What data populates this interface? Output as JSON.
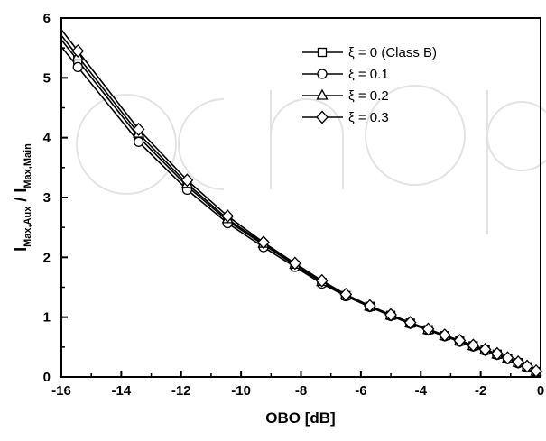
{
  "chart_data": {
    "type": "line",
    "title": "",
    "xlabel": "OBO [dB]",
    "ylabel": {
      "main": "I",
      "sub1": "Max,Aux",
      "sep": " / I",
      "sub2": "Max,Main"
    },
    "xlim": [
      -16,
      0
    ],
    "ylim": [
      0,
      6
    ],
    "xticks": [
      -16,
      -14,
      -12,
      -10,
      -8,
      -6,
      -4,
      -2,
      0
    ],
    "yticks": [
      0,
      1,
      2,
      3,
      4,
      5,
      6
    ],
    "grid": false,
    "legend_position": "top-right",
    "marker_x": [
      -15.45,
      -13.42,
      -11.8,
      -10.45,
      -9.25,
      -8.2,
      -7.3,
      -6.5,
      -5.7,
      -5.0,
      -4.35,
      -3.75,
      -3.2,
      -2.7,
      -2.25,
      -1.85,
      -1.45,
      -1.1,
      -0.75,
      -0.45,
      -0.15
    ],
    "series": [
      {
        "name": "ξ = 0 (Class B)",
        "marker": "square",
        "values": [
          5.29,
          4.01,
          3.19,
          2.61,
          2.21,
          1.87,
          1.58,
          1.36,
          1.18,
          1.03,
          0.9,
          0.79,
          0.69,
          0.6,
          0.52,
          0.45,
          0.38,
          0.31,
          0.24,
          0.17,
          0.09
        ]
      },
      {
        "name": "ξ = 0.1",
        "marker": "circle",
        "values": [
          5.18,
          3.93,
          3.13,
          2.57,
          2.17,
          1.84,
          1.56,
          1.35,
          1.17,
          1.02,
          0.89,
          0.78,
          0.68,
          0.59,
          0.51,
          0.44,
          0.37,
          0.3,
          0.23,
          0.16,
          0.09
        ]
      },
      {
        "name": "ξ = 0.2",
        "marker": "triangle",
        "values": [
          5.36,
          4.07,
          3.23,
          2.64,
          2.23,
          1.88,
          1.59,
          1.37,
          1.18,
          1.03,
          0.9,
          0.79,
          0.69,
          0.6,
          0.52,
          0.45,
          0.38,
          0.31,
          0.24,
          0.17,
          0.09
        ]
      },
      {
        "name": "ξ = 0.3",
        "marker": "diamond",
        "values": [
          5.45,
          4.14,
          3.29,
          2.69,
          2.25,
          1.9,
          1.61,
          1.38,
          1.19,
          1.04,
          0.91,
          0.8,
          0.7,
          0.61,
          0.53,
          0.46,
          0.39,
          0.32,
          0.25,
          0.18,
          0.1
        ]
      }
    ]
  }
}
